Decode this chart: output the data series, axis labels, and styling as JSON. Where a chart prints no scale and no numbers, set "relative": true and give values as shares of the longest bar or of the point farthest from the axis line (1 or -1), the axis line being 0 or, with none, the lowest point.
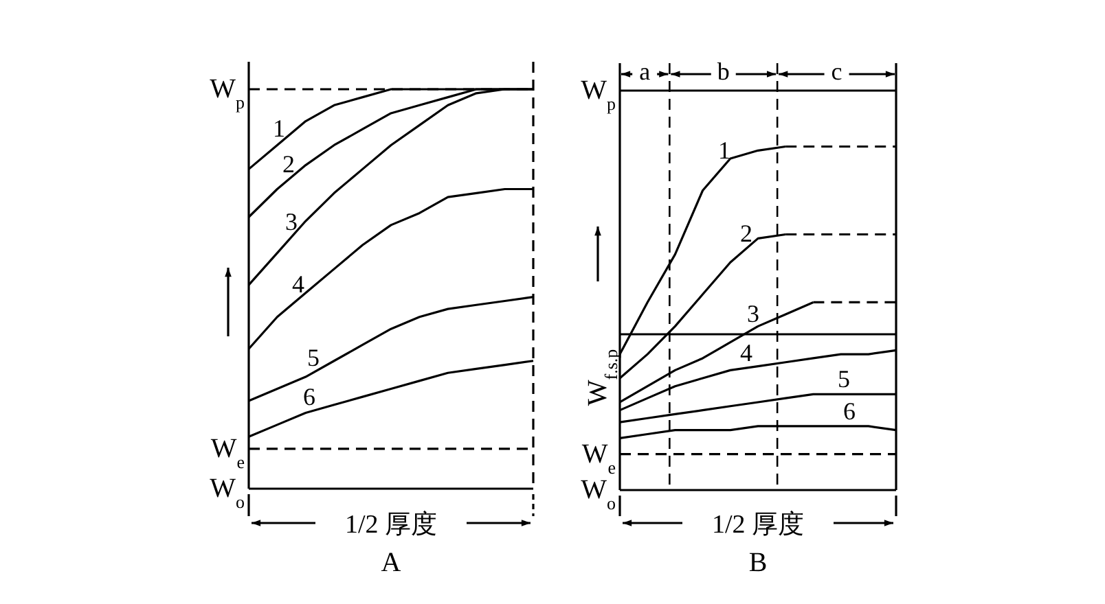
{
  "chart_data": [
    {
      "type": "line",
      "title": "A",
      "xlabel": "1/2 厚度",
      "relative": true,
      "categories": [
        null,
        null,
        null,
        null,
        null,
        null,
        null,
        null,
        null,
        null,
        null
      ],
      "series": [
        {
          "name": "W$_{p}$",
          "color": "#000000",
          "line_style": "dashed",
          "values": [
            1,
            1,
            1,
            1,
            1,
            1,
            1,
            1,
            1,
            1,
            1
          ]
        },
        {
          "name": "W$_{e}$",
          "color": "#000000",
          "line_style": "dashed",
          "values": [
            0.1,
            0.1,
            0.1,
            0.1,
            0.1,
            0.1,
            0.1,
            0.1,
            0.1,
            0.1,
            0.1
          ]
        },
        {
          "name": "W$_{o}$",
          "color": "#000000",
          "values": [
            0,
            0,
            0,
            0,
            0,
            0,
            0,
            0,
            0,
            0,
            0
          ]
        },
        {
          "name": "1",
          "color": "#000000",
          "values": [
            0.8,
            0.86,
            0.92,
            0.96,
            0.98,
            1,
            1,
            1,
            1,
            1,
            1
          ]
        },
        {
          "name": "2",
          "color": "#000000",
          "values": [
            0.68,
            0.75,
            0.81,
            0.86,
            0.9,
            0.94,
            0.96,
            0.98,
            1,
            1,
            1
          ]
        },
        {
          "name": "3",
          "color": "#000000",
          "values": [
            0.51,
            0.59,
            0.67,
            0.74,
            0.8,
            0.86,
            0.91,
            0.96,
            0.99,
            1,
            1
          ]
        },
        {
          "name": "4",
          "color": "#000000",
          "values": [
            0.35,
            0.43,
            0.49,
            0.55,
            0.61,
            0.66,
            0.69,
            0.73,
            0.74,
            0.75,
            0.75
          ]
        },
        {
          "name": "5",
          "color": "#000000",
          "values": [
            0.22,
            0.25,
            0.28,
            0.32,
            0.36,
            0.4,
            0.43,
            0.45,
            0.46,
            0.47,
            0.48
          ]
        },
        {
          "name": "6",
          "color": "#000000",
          "values": [
            0.13,
            0.16,
            0.19,
            0.21,
            0.23,
            0.25,
            0.27,
            0.29,
            0.3,
            0.31,
            0.32
          ]
        }
      ]
    },
    {
      "type": "line",
      "title": "B",
      "xlabel": "1/2 厚度",
      "ylabel": "W$_{f.s.p}$",
      "relative": true,
      "categories": [
        null,
        null,
        null,
        null,
        null,
        null,
        null,
        null,
        null,
        null,
        null
      ],
      "annotations": [
        "a",
        "b",
        "c"
      ],
      "legend": "left",
      "series": [
        {
          "name": "W$_{p}$",
          "color": "#000000",
          "values": [
            1,
            1,
            1,
            1,
            1,
            1,
            1,
            1,
            1,
            1,
            1
          ]
        },
        {
          "color": "#000000",
          "values": [
            0.39,
            0.39,
            0.39,
            0.39,
            0.39,
            0.39,
            0.39,
            0.39,
            0.39,
            0.39,
            0.39
          ]
        },
        {
          "name": "W$_{e}$",
          "color": "#000000",
          "line_style": "dashed",
          "values": [
            0.09,
            0.09,
            0.09,
            0.09,
            0.09,
            0.09,
            0.09,
            0.09,
            0.09,
            0.09,
            0.09
          ]
        },
        {
          "name": "W$_{o}$",
          "color": "#000000",
          "values": [
            0,
            0,
            0,
            0,
            0,
            0,
            0,
            0,
            0,
            0,
            0
          ]
        },
        {
          "name": "1",
          "color": "#000000",
          "values": [
            0.34,
            0.47,
            0.59,
            0.75,
            0.83,
            0.85,
            0.86,
            null,
            null,
            null,
            null
          ]
        },
        {
          "color": "#000000",
          "line_style": "dashed",
          "values": [
            null,
            null,
            null,
            null,
            null,
            null,
            0.86,
            0.86,
            0.86,
            0.86,
            0.86
          ]
        },
        {
          "name": "2",
          "color": "#000000",
          "values": [
            0.28,
            0.34,
            0.41,
            0.49,
            0.57,
            0.63,
            0.64,
            null,
            null,
            null,
            null
          ]
        },
        {
          "color": "#000000",
          "line_style": "dashed",
          "values": [
            null,
            null,
            null,
            null,
            null,
            null,
            0.64,
            0.64,
            0.64,
            0.64,
            0.64
          ]
        },
        {
          "name": "3",
          "color": "#000000",
          "values": [
            0.22,
            0.26,
            0.3,
            0.33,
            0.37,
            0.41,
            0.44,
            0.47,
            null,
            null,
            null
          ]
        },
        {
          "color": "#000000",
          "line_style": "dashed",
          "values": [
            null,
            null,
            null,
            null,
            null,
            null,
            null,
            0.47,
            0.47,
            0.47,
            0.47
          ]
        },
        {
          "name": "4",
          "color": "#000000",
          "values": [
            0.2,
            0.23,
            0.26,
            0.28,
            0.3,
            0.31,
            0.32,
            0.33,
            0.34,
            0.34,
            0.35
          ]
        },
        {
          "name": "5",
          "color": "#000000",
          "values": [
            0.17,
            0.18,
            0.19,
            0.2,
            0.21,
            0.22,
            0.23,
            0.24,
            0.24,
            0.24,
            0.24
          ]
        },
        {
          "name": "6",
          "color": "#000000",
          "values": [
            0.13,
            0.14,
            0.15,
            0.15,
            0.15,
            0.16,
            0.16,
            0.16,
            0.16,
            0.16,
            0.15
          ]
        }
      ]
    }
  ]
}
